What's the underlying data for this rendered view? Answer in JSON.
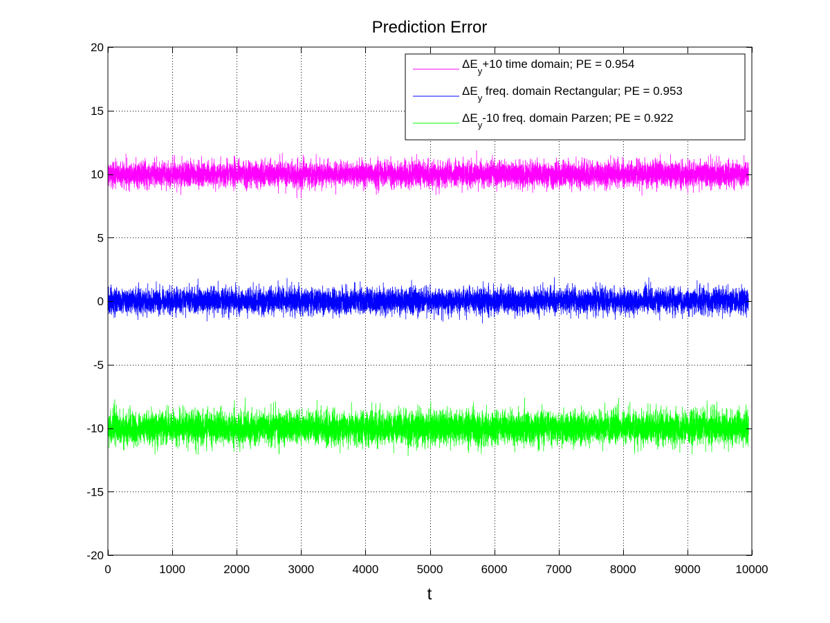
{
  "chart_data": {
    "type": "line",
    "title": "Prediction Error",
    "xlabel": "t",
    "ylabel": "",
    "xlim": [
      0,
      10000
    ],
    "ylim": [
      -20,
      20
    ],
    "xticks": [
      0,
      1000,
      2000,
      3000,
      4000,
      5000,
      6000,
      7000,
      8000,
      9000,
      10000
    ],
    "yticks": [
      -20,
      -15,
      -10,
      -5,
      0,
      5,
      10,
      15,
      20
    ],
    "grid": true,
    "legend_position": "top-right",
    "n_points": 9950,
    "series": [
      {
        "legend_parts": [
          "ΔE",
          "y",
          "+10 time domain; PE = 0.954"
        ],
        "color": "#ff00ff",
        "mean": 10,
        "std": 0.5,
        "min": 8.1,
        "max": 11.9
      },
      {
        "legend_parts": [
          "ΔE",
          "y",
          " freq. domain Rectangular; PE = 0.953"
        ],
        "color": "#0000ff",
        "mean": 0,
        "std": 0.5,
        "min": -2.0,
        "max": 1.9
      },
      {
        "legend_parts": [
          "ΔE",
          "y",
          "-10 freq. domain Parzen; PE = 0.922"
        ],
        "color": "#00ff00",
        "mean": -10,
        "std": 0.65,
        "min": -12.9,
        "max": -7.6
      }
    ]
  }
}
